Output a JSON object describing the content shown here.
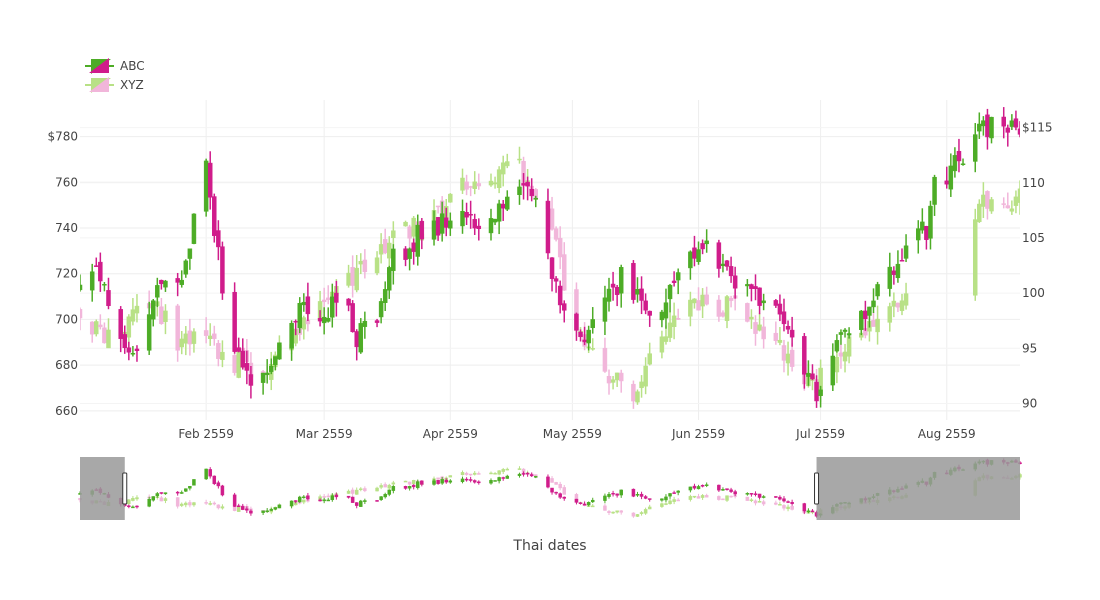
{
  "chart_data": {
    "type": "candlestick",
    "title": "",
    "xlabel": "Thai dates",
    "x_range": [
      "2016-01-01",
      "2016-08-19"
    ],
    "x_ticks": [
      {
        "date": "2016-02-01",
        "label": "Feb 2559"
      },
      {
        "date": "2016-03-01",
        "label": "Mar 2559"
      },
      {
        "date": "2016-04-01",
        "label": "Apr 2559"
      },
      {
        "date": "2016-05-01",
        "label": "May 2559"
      },
      {
        "date": "2016-06-01",
        "label": "Jun 2559"
      },
      {
        "date": "2016-07-01",
        "label": "Jul 2559"
      },
      {
        "date": "2016-08-01",
        "label": "Aug 2559"
      }
    ],
    "y_left": {
      "range": [
        656,
        796
      ],
      "ticks": [
        {
          "value": 660,
          "label": "660"
        },
        {
          "value": 680,
          "label": "680"
        },
        {
          "value": 700,
          "label": "700"
        },
        {
          "value": 720,
          "label": "720"
        },
        {
          "value": 740,
          "label": "740"
        },
        {
          "value": 760,
          "label": "760"
        },
        {
          "value": 780,
          "label": "$780"
        }
      ]
    },
    "y_right": {
      "range": [
        88.5,
        117.5
      ],
      "ticks": [
        {
          "value": 90,
          "label": "90"
        },
        {
          "value": 95,
          "label": "95"
        },
        {
          "value": 100,
          "label": "100"
        },
        {
          "value": 105,
          "label": "105"
        },
        {
          "value": 110,
          "label": "110"
        },
        {
          "value": 115,
          "label": "$115"
        }
      ]
    },
    "legend_placement": "top-left",
    "grid": true,
    "rangeslider": {
      "visible": true,
      "selected_range": [
        "2016-01-12",
        "2016-06-30"
      ],
      "mask_color": "#999999"
    },
    "series": [
      {
        "name": "ABC",
        "axis": "left",
        "increasing_color": "#4DAC26",
        "decreasing_color": "#D01C8B",
        "knots": [
          [
            "2016-01-01",
            712
          ],
          [
            "2016-01-05",
            722
          ],
          [
            "2016-01-09",
            700
          ],
          [
            "2016-01-13",
            682
          ],
          [
            "2016-01-17",
            700
          ],
          [
            "2016-01-21",
            720
          ],
          [
            "2016-01-25",
            712
          ],
          [
            "2016-01-28",
            735
          ],
          [
            "2016-01-30",
            752
          ],
          [
            "2016-02-01",
            772
          ],
          [
            "2016-02-03",
            742
          ],
          [
            "2016-02-06",
            695
          ],
          [
            "2016-02-10",
            680
          ],
          [
            "2016-02-14",
            672
          ],
          [
            "2016-02-18",
            682
          ],
          [
            "2016-02-22",
            700
          ],
          [
            "2016-02-26",
            705
          ],
          [
            "2016-03-01",
            702
          ],
          [
            "2016-03-05",
            712
          ],
          [
            "2016-03-09",
            692
          ],
          [
            "2016-03-13",
            697
          ],
          [
            "2016-03-17",
            725
          ],
          [
            "2016-03-21",
            730
          ],
          [
            "2016-03-25",
            738
          ],
          [
            "2016-03-29",
            740
          ],
          [
            "2016-04-02",
            750
          ],
          [
            "2016-04-06",
            745
          ],
          [
            "2016-04-10",
            740
          ],
          [
            "2016-04-14",
            748
          ],
          [
            "2016-04-18",
            760
          ],
          [
            "2016-04-22",
            748
          ],
          [
            "2016-04-25",
            725
          ],
          [
            "2016-04-28",
            705
          ],
          [
            "2016-05-01",
            690
          ],
          [
            "2016-05-05",
            695
          ],
          [
            "2016-05-09",
            710
          ],
          [
            "2016-05-13",
            718
          ],
          [
            "2016-05-17",
            712
          ],
          [
            "2016-05-21",
            702
          ],
          [
            "2016-05-25",
            712
          ],
          [
            "2016-05-29",
            722
          ],
          [
            "2016-06-02",
            735
          ],
          [
            "2016-06-06",
            722
          ],
          [
            "2016-06-10",
            715
          ],
          [
            "2016-06-14",
            712
          ],
          [
            "2016-06-18",
            708
          ],
          [
            "2016-06-22",
            700
          ],
          [
            "2016-06-26",
            685
          ],
          [
            "2016-06-30",
            668
          ],
          [
            "2016-07-03",
            682
          ],
          [
            "2016-07-07",
            692
          ],
          [
            "2016-07-11",
            700
          ],
          [
            "2016-07-15",
            710
          ],
          [
            "2016-07-19",
            720
          ],
          [
            "2016-07-23",
            735
          ],
          [
            "2016-07-27",
            740
          ],
          [
            "2016-07-29",
            762
          ],
          [
            "2016-08-01",
            764
          ],
          [
            "2016-08-05",
            772
          ],
          [
            "2016-08-09",
            784
          ],
          [
            "2016-08-13",
            785
          ],
          [
            "2016-08-19",
            786
          ]
        ]
      },
      {
        "name": "XYZ",
        "axis": "right",
        "increasing_color": "#B8E186",
        "decreasing_color": "#F1B6DA",
        "knots": [
          [
            "2016-01-01",
            98.5
          ],
          [
            "2016-01-05",
            96.5
          ],
          [
            "2016-01-09",
            95.5
          ],
          [
            "2016-01-13",
            97.0
          ],
          [
            "2016-01-17",
            99.5
          ],
          [
            "2016-01-21",
            98.0
          ],
          [
            "2016-01-25",
            95.5
          ],
          [
            "2016-01-29",
            96.0
          ],
          [
            "2016-02-02",
            95.5
          ],
          [
            "2016-02-06",
            93.0
          ],
          [
            "2016-02-10",
            94.0
          ],
          [
            "2016-02-14",
            92.5
          ],
          [
            "2016-02-18",
            94.0
          ],
          [
            "2016-02-22",
            96.0
          ],
          [
            "2016-02-26",
            97.0
          ],
          [
            "2016-03-01",
            99.0
          ],
          [
            "2016-03-05",
            100.5
          ],
          [
            "2016-03-09",
            101.5
          ],
          [
            "2016-03-13",
            103.0
          ],
          [
            "2016-03-17",
            104.5
          ],
          [
            "2016-03-21",
            105.5
          ],
          [
            "2016-03-25",
            106.0
          ],
          [
            "2016-03-29",
            107.0
          ],
          [
            "2016-04-02",
            109.5
          ],
          [
            "2016-04-06",
            110.5
          ],
          [
            "2016-04-10",
            109.5
          ],
          [
            "2016-04-14",
            111.0
          ],
          [
            "2016-04-18",
            111.5
          ],
          [
            "2016-04-22",
            108.5
          ],
          [
            "2016-04-26",
            106.0
          ],
          [
            "2016-04-30",
            99.0
          ],
          [
            "2016-05-04",
            95.5
          ],
          [
            "2016-05-08",
            93.0
          ],
          [
            "2016-05-12",
            92.0
          ],
          [
            "2016-05-16",
            90.5
          ],
          [
            "2016-05-20",
            93.5
          ],
          [
            "2016-05-24",
            96.0
          ],
          [
            "2016-05-28",
            98.0
          ],
          [
            "2016-06-01",
            99.5
          ],
          [
            "2016-06-05",
            98.0
          ],
          [
            "2016-06-09",
            99.5
          ],
          [
            "2016-06-13",
            97.5
          ],
          [
            "2016-06-17",
            96.0
          ],
          [
            "2016-06-21",
            95.0
          ],
          [
            "2016-06-25",
            93.5
          ],
          [
            "2016-06-29",
            91.5
          ],
          [
            "2016-07-03",
            93.0
          ],
          [
            "2016-07-07",
            95.0
          ],
          [
            "2016-07-11",
            96.5
          ],
          [
            "2016-07-15",
            97.5
          ],
          [
            "2016-07-19",
            99.0
          ],
          [
            "2016-07-23",
            100.0
          ],
          [
            "2016-07-26",
            98.0
          ],
          [
            "2016-07-28",
            101.5
          ],
          [
            "2016-08-01",
            104.0
          ],
          [
            "2016-08-05",
            106.0
          ],
          [
            "2016-08-09",
            108.0
          ],
          [
            "2016-08-13",
            108.0
          ],
          [
            "2016-08-19",
            108.5
          ]
        ],
        "gaps": [
          [
            "2016-07-25",
            0.13
          ],
          [
            "2016-08-01",
            1.0
          ]
        ]
      }
    ]
  }
}
